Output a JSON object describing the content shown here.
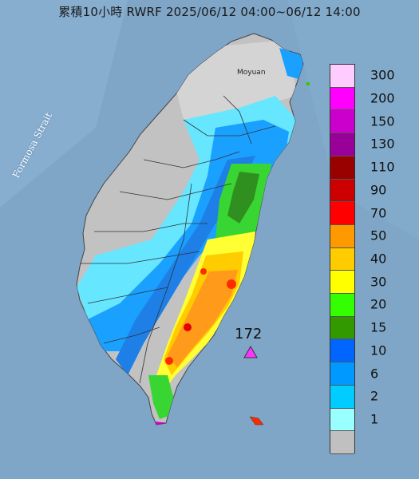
{
  "title": "累積10小時 RWRF 2025/06/12 04:00~06/12 14:00",
  "map_labels": {
    "strait": "Formosa Strait",
    "city": "Moyuan"
  },
  "station": {
    "value": "172",
    "marker_color": "#ff33ff"
  },
  "legend": {
    "items": [
      {
        "label": "300",
        "color": "#ffccff"
      },
      {
        "label": "200",
        "color": "#ff00ff"
      },
      {
        "label": "150",
        "color": "#cc00cc"
      },
      {
        "label": "130",
        "color": "#990099"
      },
      {
        "label": "110",
        "color": "#990000"
      },
      {
        "label": "90",
        "color": "#cc0000"
      },
      {
        "label": "70",
        "color": "#ff0000"
      },
      {
        "label": "50",
        "color": "#ff9900"
      },
      {
        "label": "40",
        "color": "#ffcc00"
      },
      {
        "label": "30",
        "color": "#ffff00"
      },
      {
        "label": "20",
        "color": "#33ff00"
      },
      {
        "label": "15",
        "color": "#339900"
      },
      {
        "label": "10",
        "color": "#0066ff"
      },
      {
        "label": "6",
        "color": "#0099ff"
      },
      {
        "label": "2",
        "color": "#00ccff"
      },
      {
        "label": "1",
        "color": "#99ffff"
      },
      {
        "label": "",
        "color": "#c0c0c0"
      }
    ]
  }
}
